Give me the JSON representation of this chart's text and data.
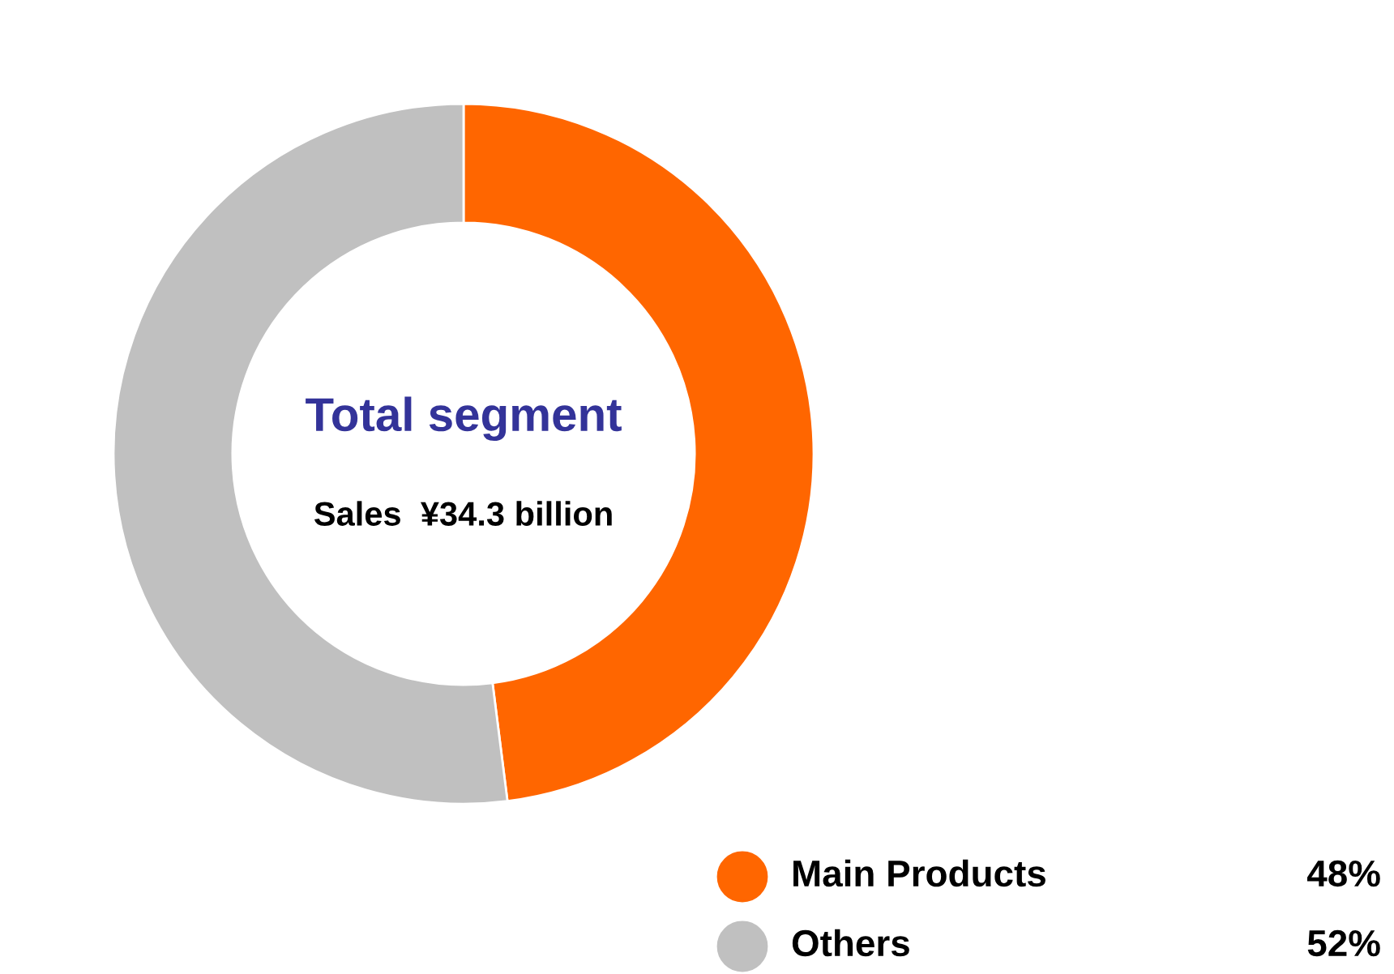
{
  "chart_data": {
    "type": "donut",
    "title": "Total segment",
    "subtitle": "Sales  ¥34.3 billion",
    "categories": [
      "Main Products",
      "Others"
    ],
    "values": [
      48,
      52
    ],
    "colors": [
      "#ff6600",
      "#c0c0c0"
    ],
    "value_labels": [
      "48%",
      "52%"
    ],
    "legend": "bottom right"
  }
}
